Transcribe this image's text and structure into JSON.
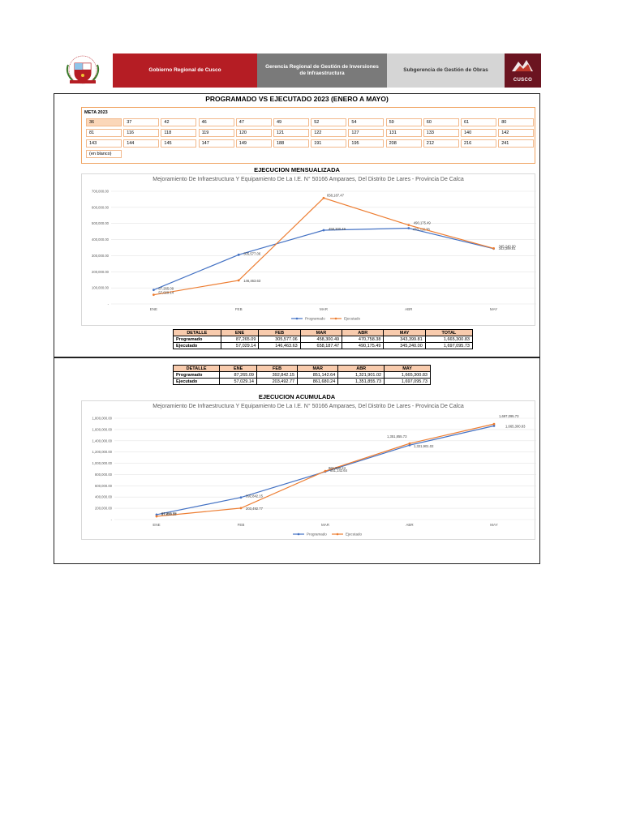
{
  "header": {
    "org": "Gobierno Regional de Cusco",
    "gerencia": "Gerencia Regional de Gestión  de Inversiones de Infraestructura",
    "subgerencia": "Subgerencia de Gestión de Obras",
    "logo_text": "CUSCO"
  },
  "report": {
    "title": "PROGRAMADO VS EJECUTADO 2023 (ENERO A MAYO)"
  },
  "meta": {
    "label": "META 2023",
    "rows": [
      [
        "36",
        "37",
        "42",
        "46",
        "47",
        "49",
        "52",
        "54",
        "59",
        "60",
        "61",
        "80"
      ],
      [
        "81",
        "116",
        "118",
        "119",
        "120",
        "121",
        "122",
        "127",
        "131",
        "133",
        "140",
        "142"
      ],
      [
        "143",
        "144",
        "145",
        "147",
        "149",
        "188",
        "191",
        "195",
        "208",
        "212",
        "216",
        "241"
      ],
      [
        "(en blanco)"
      ]
    ]
  },
  "section1": {
    "heading": "EJECUCION MENSUALIZADA"
  },
  "section2": {
    "heading": "EJECUCION ACUMULADA"
  },
  "table_monthly": {
    "headers": [
      "DETALLE",
      "ENE",
      "FEB",
      "MAR",
      "ABR",
      "MAY",
      "TOTAL"
    ],
    "rows": [
      [
        "Programado",
        "87,265.09",
        "305,577.06",
        "458,300.49",
        "470,758.38",
        "343,399.81",
        "1,665,300.83"
      ],
      [
        "Ejecutado",
        "57,029.14",
        "146,463.63",
        "658,187.47",
        "490,175.49",
        "345,240.00",
        "1,697,095.73"
      ]
    ]
  },
  "table_cumulative": {
    "headers": [
      "DETALLE",
      "ENE",
      "FEB",
      "MAR",
      "ABR",
      "MAY"
    ],
    "rows": [
      [
        "Programado",
        "87,265.09",
        "392,842.15",
        "851,142.64",
        "1,321,901.02",
        "1,665,300.83"
      ],
      [
        "Ejecutado",
        "57,029.14",
        "203,492.77",
        "861,680.24",
        "1,351,855.73",
        "1,697,095.73"
      ]
    ]
  },
  "chart_data": [
    {
      "type": "line",
      "title": "Mejoramiento De Infraestructura Y Equipamiento De La I.E. N° 50166 Amparaes, Del Distrito De Lares - Provincia De Calca",
      "categories": [
        "ENE",
        "FEB",
        "MAR",
        "ABR",
        "MAY"
      ],
      "ylim": [
        0,
        700000
      ],
      "yticks": [
        "-",
        "100,000.00",
        "200,000.00",
        "300,000.00",
        "400,000.00",
        "500,000.00",
        "600,000.00",
        "700,000.00"
      ],
      "series": [
        {
          "name": "Programado",
          "color": "#4472c4",
          "values": [
            87265.09,
            305577.06,
            458300.49,
            470758.38,
            343399.81
          ],
          "labels": [
            "87,265.09",
            "305,577.06",
            "458,300.49",
            "470,758.38",
            "343,399.81"
          ]
        },
        {
          "name": "Ejecutado",
          "color": "#ed7d31",
          "values": [
            57029.14,
            146463.63,
            658187.47,
            490175.49,
            345240.0
          ],
          "labels": [
            "57,029.14",
            "146,463.63",
            "658,187.47",
            "490,175.49",
            "345,240.00"
          ]
        }
      ],
      "legend": "bottom"
    },
    {
      "type": "line",
      "title": "Mejoramiento De Infraestructura Y Equipamiento De La I.E. N° 50166 Amparaes, Del Distrito De Lares - Provincia De Calca",
      "categories": [
        "ENE",
        "FEB",
        "MAR",
        "ABR",
        "MAY"
      ],
      "ylim": [
        0,
        1800000
      ],
      "yticks": [
        "-",
        "200,000.00",
        "400,000.00",
        "600,000.00",
        "800,000.00",
        "1,000,000.00",
        "1,200,000.00",
        "1,400,000.00",
        "1,600,000.00",
        "1,800,000.00"
      ],
      "series": [
        {
          "name": "Programado",
          "color": "#4472c4",
          "values": [
            87265.09,
            392842.15,
            851142.64,
            1321901.02,
            1665300.83
          ],
          "labels": [
            "87,265.09",
            "392,842.15",
            "851,142.64",
            "1,321,901.02",
            "1,665,300.83"
          ]
        },
        {
          "name": "Ejecutado",
          "color": "#ed7d31",
          "values": [
            57029.14,
            203492.77,
            861680.24,
            1351855.73,
            1697095.73
          ],
          "labels": [
            "57,029.14",
            "203,492.77",
            "861,680.24",
            "1,351,855.73",
            "1,697,095.73"
          ]
        }
      ],
      "legend": "bottom"
    }
  ]
}
